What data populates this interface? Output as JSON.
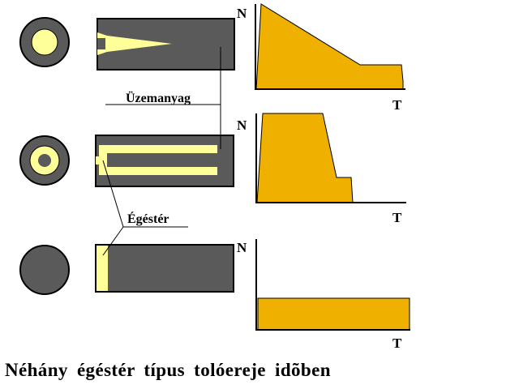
{
  "colors": {
    "grain": "#5a5a5a",
    "channel": "#ffff99",
    "thrust_fill": "#f0b000",
    "outline": "#000000",
    "background": "#ffffff"
  },
  "labels": {
    "fuel": "Üzemanyag",
    "chamber": "Égéstér",
    "caption": "Néhány égéstér típus tolóereje idõben"
  },
  "rows": [
    {
      "cross_section": "circle-with-center-channel",
      "side_section": "tapered-cone-channel",
      "graph": {
        "y_axis_label": "N",
        "x_axis_label": "T",
        "profile": "regressive"
      }
    },
    {
      "cross_section": "tube-with-core",
      "side_section": "annular-fork-channel",
      "graph": {
        "y_axis_label": "N",
        "x_axis_label": "T",
        "profile": "high-then-drop"
      }
    },
    {
      "cross_section": "solid-end-burner",
      "side_section": "end-face-burn",
      "graph": {
        "y_axis_label": "N",
        "x_axis_label": "T",
        "profile": "neutral"
      }
    }
  ]
}
